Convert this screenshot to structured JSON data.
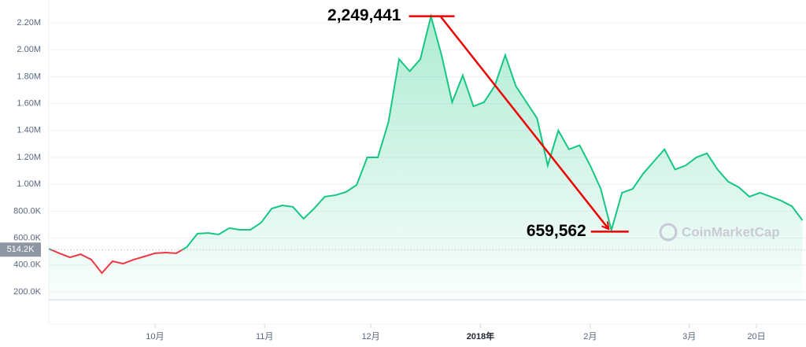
{
  "chart_data": {
    "type": "area",
    "x": [
      0,
      3,
      6,
      9,
      12,
      15,
      18,
      21,
      24,
      27,
      30,
      33,
      36,
      39,
      42,
      45,
      48,
      51,
      54,
      57,
      60,
      63,
      66,
      69,
      72,
      75,
      78,
      81,
      84,
      87,
      90,
      93,
      96,
      99,
      102,
      105,
      108,
      111,
      114,
      117,
      120,
      123,
      126,
      129,
      132,
      135,
      138,
      141,
      144,
      147,
      150,
      153,
      156,
      159,
      162,
      165,
      168,
      171,
      174,
      177,
      180,
      183,
      186,
      189,
      192,
      195,
      198,
      201,
      204,
      207,
      210,
      213
    ],
    "series": [
      {
        "color": "#16c784",
        "below_color": "#ea3943",
        "values": [
          521000,
          487000,
          457000,
          480000,
          440000,
          340000,
          428000,
          410000,
          440000,
          463000,
          487000,
          492000,
          487000,
          533000,
          633000,
          638000,
          627000,
          674000,
          662000,
          662000,
          715000,
          820000,
          843000,
          832000,
          744000,
          820000,
          908000,
          919000,
          943000,
          995000,
          1200000,
          1200000,
          1463000,
          1930000,
          1840000,
          1930000,
          2249441,
          1960000,
          1610000,
          1810000,
          1580000,
          1610000,
          1730000,
          1960000,
          1730000,
          1610000,
          1490000,
          1140000,
          1400000,
          1260000,
          1290000,
          1140000,
          966000,
          659562,
          937000,
          966000,
          1080000,
          1170000,
          1260000,
          1110000,
          1140000,
          1200000,
          1230000,
          1110000,
          1020000,
          978000,
          908000,
          937000,
          908000,
          878000,
          837000,
          732000
        ]
      }
    ],
    "xlim": [
      0,
      214
    ],
    "xticks": [
      {
        "value": 30,
        "label": "10月"
      },
      {
        "value": 61,
        "label": "11月"
      },
      {
        "value": 91,
        "label": "12月"
      },
      {
        "value": 122,
        "label": "2018年"
      },
      {
        "value": 153,
        "label": "2月"
      },
      {
        "value": 181,
        "label": "3月"
      },
      {
        "value": 200,
        "label": "20日"
      }
    ],
    "ylim": [
      -40000,
      2370000
    ],
    "yticks": [
      {
        "value": 200000,
        "label": "200.0K"
      },
      {
        "value": 400000,
        "label": "400.0K"
      },
      {
        "value": 600000,
        "label": "600.0K"
      },
      {
        "value": 800000,
        "label": "800.0K"
      },
      {
        "value": 1000000,
        "label": "1.00M"
      },
      {
        "value": 1200000,
        "label": "1.20M"
      },
      {
        "value": 1400000,
        "label": "1.40M"
      },
      {
        "value": 1600000,
        "label": "1.60M"
      },
      {
        "value": 1800000,
        "label": "1.80M"
      },
      {
        "value": 2000000,
        "label": "2.00M"
      },
      {
        "value": 2200000,
        "label": "2.20M"
      }
    ],
    "grid": true,
    "baseline": {
      "value": 514200,
      "label": "514.2K"
    },
    "annotations": [
      {
        "text": "2,249,441",
        "point": 36
      },
      {
        "text": "659,562",
        "point": 53
      }
    ],
    "watermark": "CoinMarketCap"
  }
}
